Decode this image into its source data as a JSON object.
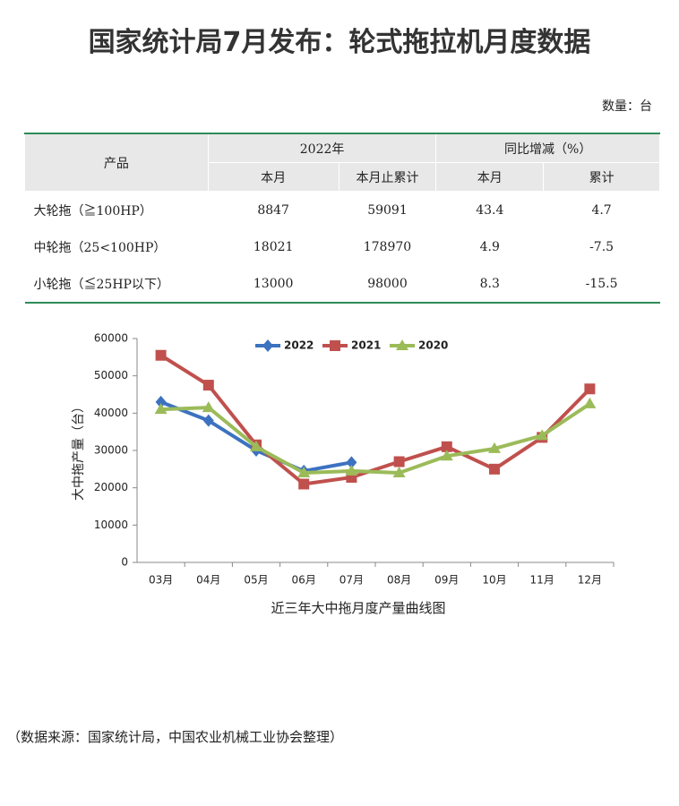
{
  "header": {
    "title": "国家统计局7月发布：轮式拖拉机月度数据",
    "unit": "数量：台"
  },
  "table": {
    "head": {
      "product": "产品",
      "group1": "2022年",
      "group2": "同比增减（%）",
      "sub": [
        "本月",
        "本月止累计",
        "本月",
        "累计"
      ]
    },
    "rows": [
      [
        "大轮拖（≧100HP）",
        "8847",
        "59091",
        "43.4",
        "4.7"
      ],
      [
        "中轮拖（25<100HP）",
        "18021",
        "178970",
        "4.9",
        "-7.5"
      ],
      [
        "小轮拖（≦25HP以下）",
        "13000",
        "98000",
        "8.3",
        "-15.5"
      ]
    ]
  },
  "chart_data": {
    "type": "line",
    "xlabel": "近三年大中拖月度产量曲线图",
    "ylabel": "大中拖产量（台）",
    "categories": [
      "03月",
      "04月",
      "05月",
      "06月",
      "07月",
      "08月",
      "09月",
      "10月",
      "11月",
      "12月"
    ],
    "series": [
      {
        "name": "2022",
        "color": "#3c72c0",
        "marker": "diamond",
        "values": [
          43000,
          38000,
          30000,
          24500,
          26800,
          null,
          null,
          null,
          null,
          null
        ]
      },
      {
        "name": "2021",
        "color": "#c0504d",
        "marker": "square",
        "values": [
          55500,
          47500,
          31500,
          21000,
          22800,
          27000,
          31000,
          25000,
          33500,
          46500
        ]
      },
      {
        "name": "2020",
        "color": "#9bbb59",
        "marker": "triangle",
        "values": [
          41000,
          41500,
          31000,
          24000,
          24500,
          24000,
          28500,
          30500,
          34000,
          42500
        ]
      }
    ],
    "ylim": [
      0,
      60000
    ],
    "yticks": [
      0,
      10000,
      20000,
      30000,
      40000,
      50000,
      60000
    ],
    "legend": "top"
  },
  "source": "（数据来源：国家统计局，中国农业机械工业协会整理）"
}
